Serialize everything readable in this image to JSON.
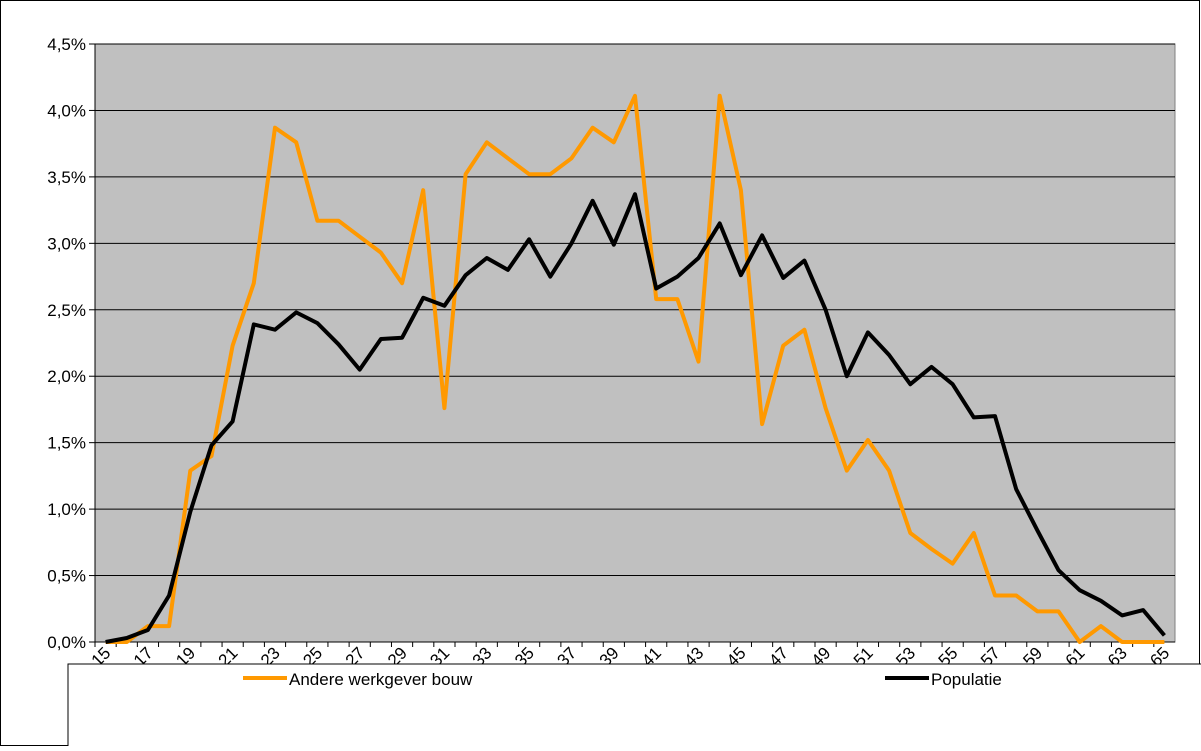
{
  "chart_data": {
    "type": "line",
    "categories": [
      "15",
      null,
      "17",
      null,
      "19",
      null,
      "21",
      null,
      "23",
      null,
      "25",
      null,
      "27",
      null,
      "29",
      null,
      "31",
      null,
      "33",
      null,
      "35",
      null,
      "37",
      null,
      "39",
      null,
      "41",
      null,
      "43",
      null,
      "45",
      null,
      "47",
      null,
      "49",
      null,
      "51",
      null,
      "53",
      null,
      "55",
      null,
      "57",
      null,
      "59",
      null,
      "61",
      null,
      "63",
      null,
      "65"
    ],
    "series": [
      {
        "name": "Andere werkgever bouw",
        "color": "#ff9900",
        "values": [
          0,
          0,
          0.12,
          0.12,
          1.29,
          1.4,
          2.23,
          2.7,
          3.87,
          3.76,
          3.17,
          3.17,
          3.05,
          2.93,
          2.7,
          3.4,
          1.76,
          3.52,
          3.76,
          3.64,
          3.52,
          3.52,
          3.64,
          3.87,
          3.76,
          4.11,
          2.58,
          2.58,
          2.11,
          4.11,
          3.4,
          1.64,
          2.23,
          2.35,
          1.76,
          1.29,
          1.52,
          1.29,
          0.82,
          0.7,
          0.59,
          0.82,
          0.35,
          0.35,
          0.23,
          0.23,
          0,
          0.12,
          0,
          0,
          0
        ]
      },
      {
        "name": "Populatie",
        "color": "#000000",
        "values": [
          0,
          0.03,
          0.09,
          0.35,
          0.98,
          1.48,
          1.66,
          2.39,
          2.35,
          2.48,
          2.4,
          2.24,
          2.05,
          2.28,
          2.29,
          2.59,
          2.53,
          2.76,
          2.89,
          2.8,
          3.03,
          2.75,
          3.0,
          3.32,
          2.99,
          3.37,
          2.66,
          2.75,
          2.89,
          3.15,
          2.76,
          3.06,
          2.74,
          2.87,
          2.5,
          2.0,
          2.33,
          2.16,
          1.94,
          2.07,
          1.94,
          1.69,
          1.7,
          1.15,
          0.84,
          0.54,
          0.39,
          0.31,
          0.2,
          0.24,
          0.05
        ]
      }
    ],
    "ylim": [
      0,
      4.5
    ],
    "yticks": [
      {
        "value": 0,
        "label": "0,0%"
      },
      {
        "value": 0.5,
        "label": "0,5%"
      },
      {
        "value": 1,
        "label": "1,0%"
      },
      {
        "value": 1.5,
        "label": "1,5%"
      },
      {
        "value": 2,
        "label": "2,0%"
      },
      {
        "value": 2.5,
        "label": "2,5%"
      },
      {
        "value": 3,
        "label": "3,0%"
      },
      {
        "value": 3.5,
        "label": "3,5%"
      },
      {
        "value": 4,
        "label": "4,0%"
      },
      {
        "value": 4.5,
        "label": "4,5%"
      }
    ],
    "grid": true,
    "plot_background": "#c0c0c0",
    "legend": "bottom"
  }
}
